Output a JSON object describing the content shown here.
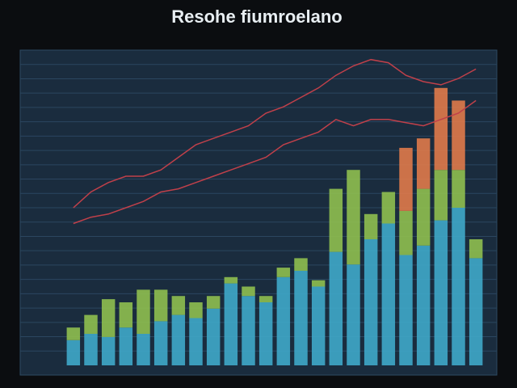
{
  "chart_data": {
    "type": "bar",
    "title": "Resohe fiumroelano",
    "categories": [
      null,
      null,
      null,
      null,
      null,
      null,
      null,
      null,
      null,
      null,
      null,
      null,
      null,
      null,
      null,
      null,
      null,
      null,
      null,
      null,
      null,
      null,
      null,
      null
    ],
    "series": [
      {
        "color": "#3fa9c9",
        "values": [
          8,
          10,
          9,
          12,
          10,
          14,
          16,
          15,
          18,
          26,
          22,
          20,
          28,
          30,
          25,
          36,
          32,
          40,
          45,
          35,
          38,
          46,
          50,
          34
        ]
      },
      {
        "color": "#8fbf4f",
        "values": [
          4,
          6,
          12,
          8,
          14,
          10,
          6,
          5,
          4,
          2,
          3,
          2,
          3,
          4,
          2,
          20,
          30,
          8,
          10,
          14,
          18,
          16,
          12,
          6
        ]
      },
      {
        "color": "#e07a4a",
        "values": [
          0,
          0,
          0,
          0,
          0,
          0,
          0,
          0,
          0,
          0,
          0,
          0,
          0,
          0,
          0,
          0,
          0,
          0,
          0,
          20,
          16,
          26,
          22,
          0
        ]
      }
    ],
    "lines": [
      {
        "color": "#c0404a",
        "values": [
          50,
          55,
          58,
          60,
          60,
          62,
          66,
          70,
          72,
          74,
          76,
          80,
          82,
          85,
          88,
          92,
          95,
          97,
          96,
          92,
          90,
          89,
          91,
          94
        ]
      },
      {
        "color": "#c0404a",
        "values": [
          45,
          47,
          48,
          50,
          52,
          55,
          56,
          58,
          60,
          62,
          64,
          66,
          70,
          72,
          74,
          78,
          76,
          78,
          78,
          77,
          76,
          78,
          80,
          84
        ]
      }
    ],
    "ylim": [
      0,
      100
    ],
    "grid": true
  }
}
